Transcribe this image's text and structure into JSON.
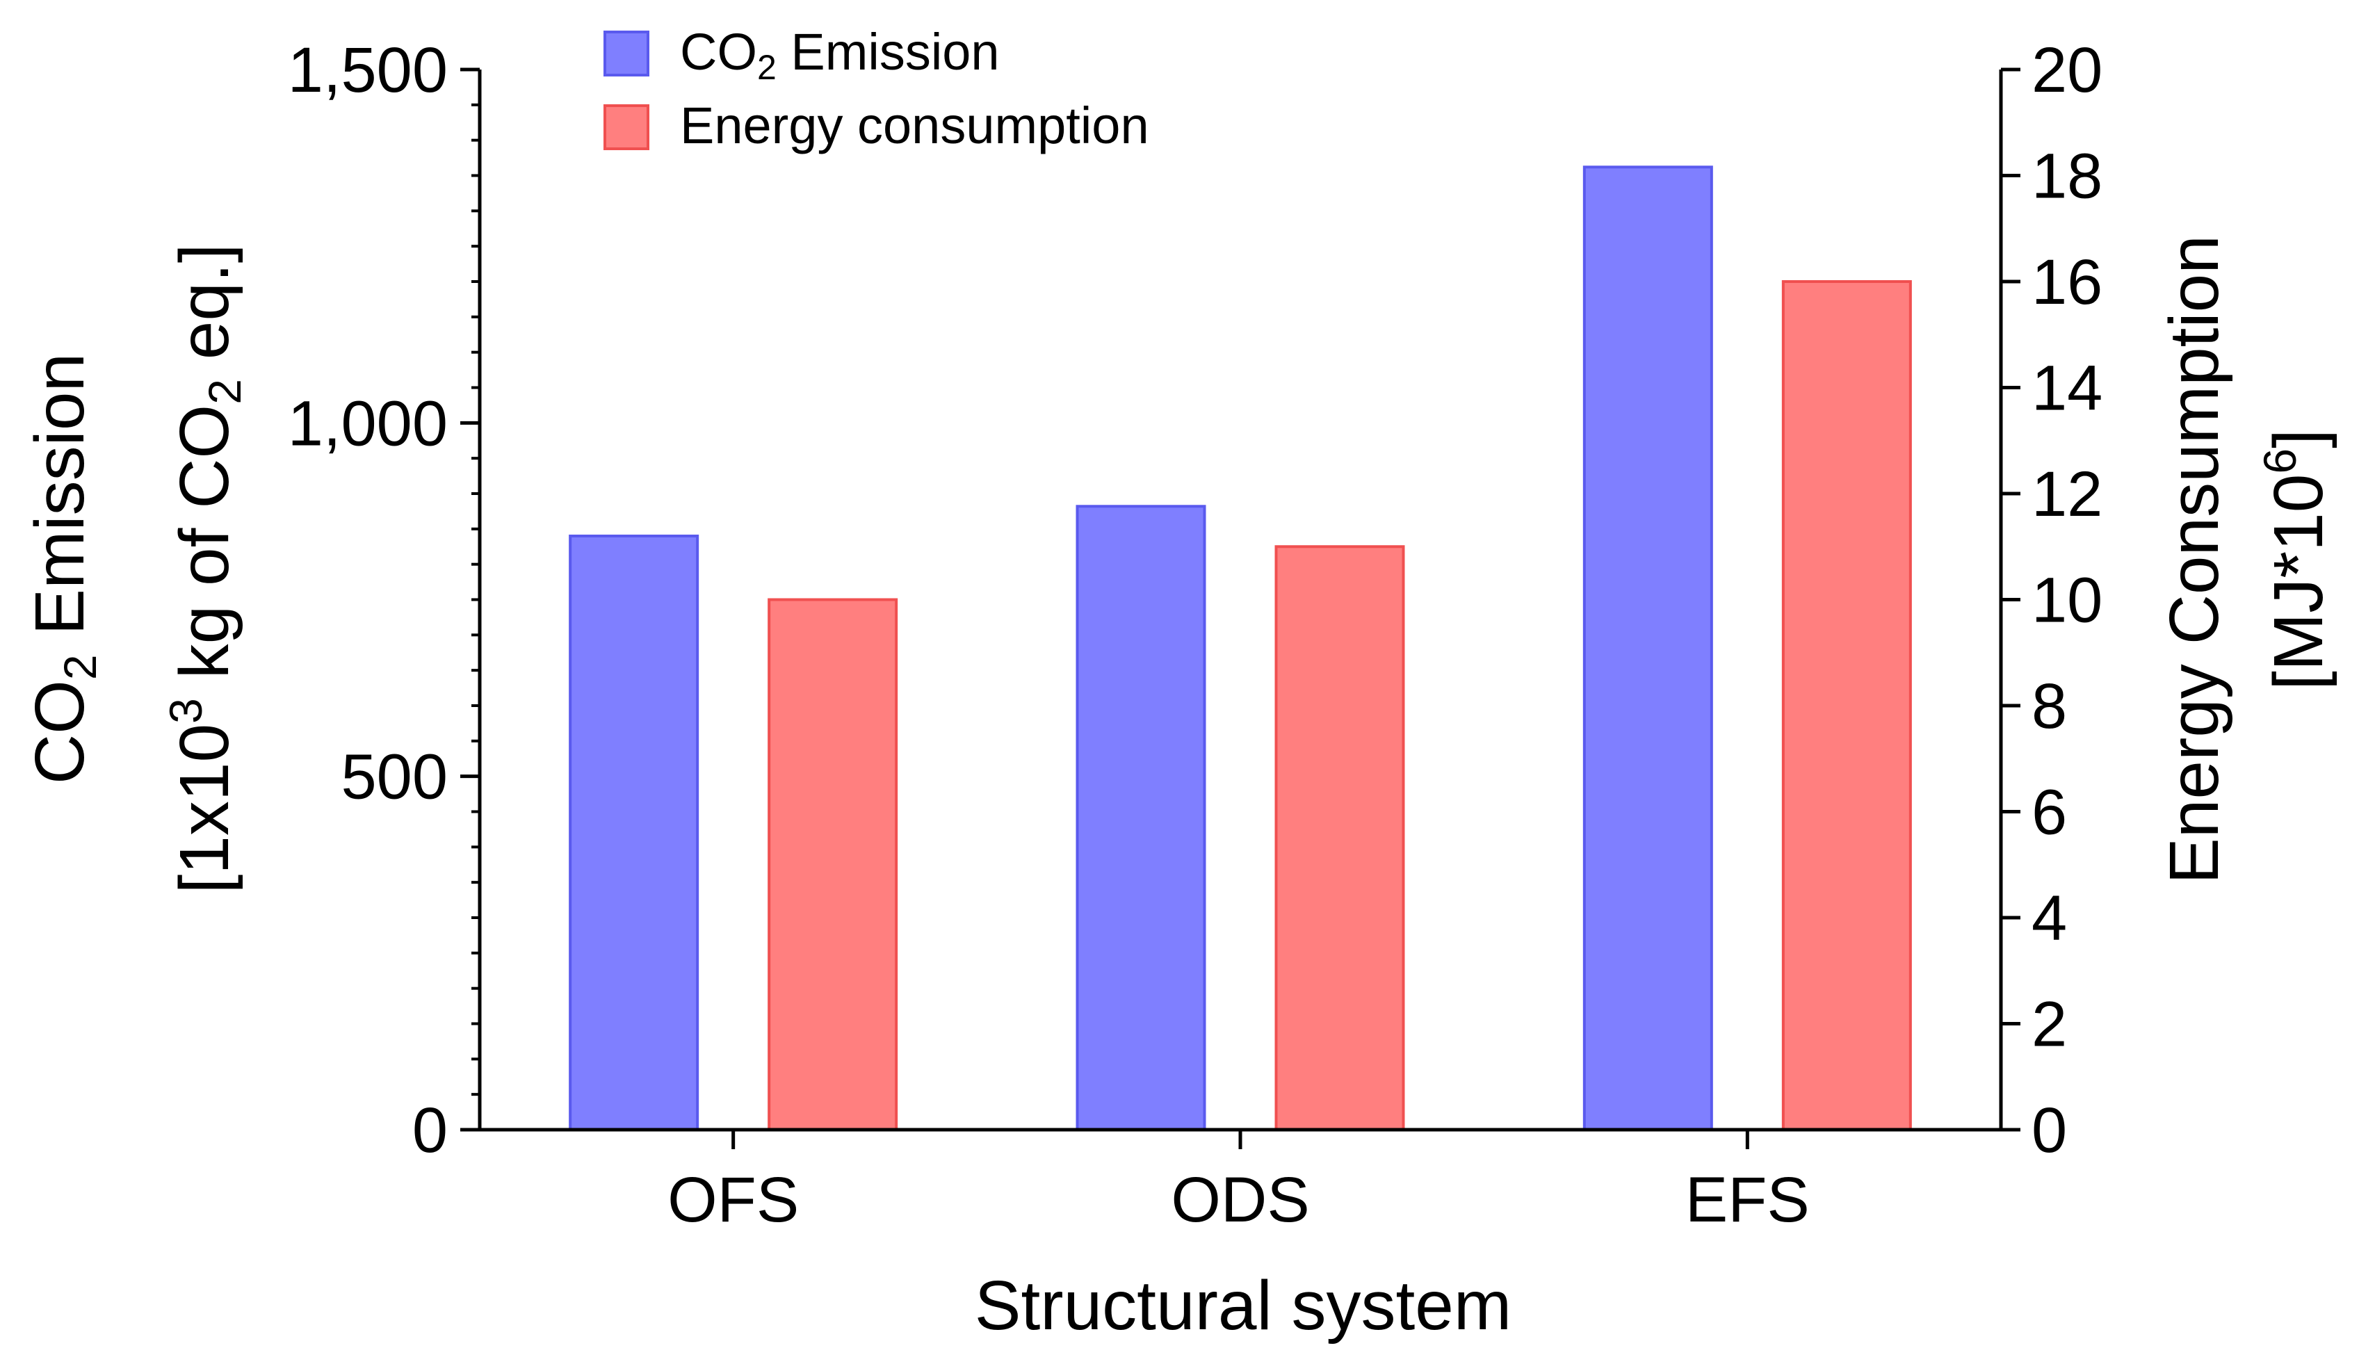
{
  "chart_data": {
    "type": "bar",
    "categories": [
      "OFS",
      "ODS",
      "EFS"
    ],
    "xlabel": "Structural system",
    "series": [
      {
        "name": "CO2 Emission",
        "name_main": "CO",
        "name_sub": "2",
        "name_rest": " Emission",
        "axis": "left",
        "color": "#7f7fff",
        "edge_color": "#5a5aee",
        "values": [
          840,
          882,
          1362
        ]
      },
      {
        "name": "Energy consumption",
        "axis": "right",
        "color": "#ff7f7f",
        "edge_color": "#f05050",
        "values": [
          10.0,
          11.0,
          16.0
        ]
      }
    ],
    "y_left": {
      "label_line1_main": "CO",
      "label_line1_sub": "2",
      "label_line1_rest": " Emission",
      "label_line2_a": "[1x10",
      "label_line2_sup": "3",
      "label_line2_b": " kg of CO",
      "label_line2_sub": "2",
      "label_line2_c": " eq.]",
      "ylim": [
        0,
        1500
      ],
      "ticks": [
        0,
        500,
        1000,
        1500
      ],
      "tick_labels": [
        "0",
        "500",
        "1,000",
        "1,500"
      ],
      "minor_step": 50
    },
    "y_right": {
      "label_line1": "Energy Consumption",
      "label_line2_a": "[MJ*10",
      "label_line2_sup": "6",
      "label_line2_b": "]",
      "ylim": [
        0,
        20
      ],
      "ticks": [
        0,
        2,
        4,
        6,
        8,
        10,
        12,
        14,
        16,
        18,
        20
      ],
      "tick_labels": [
        "0",
        "2",
        "4",
        "6",
        "8",
        "10",
        "12",
        "14",
        "16",
        "18",
        "20"
      ]
    },
    "legend": {
      "position": "top-left"
    },
    "grid": false
  }
}
